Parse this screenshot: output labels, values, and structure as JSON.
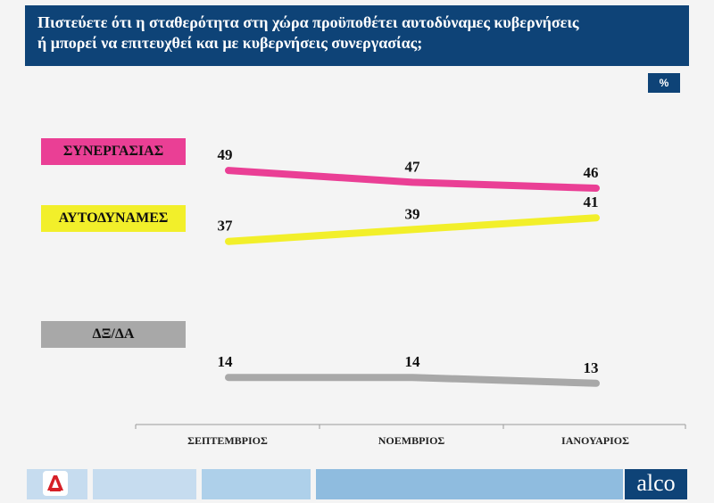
{
  "header": {
    "line1": "Πιστεύετε ότι η σταθερότητα στη χώρα προϋποθέτει αυτοδύναμες κυβερνήσεις",
    "line2": "ή μπορεί να επιτευχθεί και με κυβερνήσεις συνεργασίας;"
  },
  "unit_label": "%",
  "colors": {
    "header_bg": "#0e4377",
    "synergasias": "#ea3f95",
    "aftodynames": "#f2ef2a",
    "dk_na": "#a8a8a8",
    "footer_light": "#c6dcef",
    "footer_mid": "#8fbcdf"
  },
  "chart_data": {
    "type": "line",
    "categories": [
      "ΣΕΠΤΕΜΒΡΙΟΣ",
      "ΝΟΕΜΒΡΙΟΣ",
      "ΙΑΝΟΥΑΡΙΟΣ"
    ],
    "series": [
      {
        "name": "ΣΥΝΕΡΓΑΣΙΑΣ",
        "values": [
          49,
          47,
          46
        ],
        "color": "#ea3f95"
      },
      {
        "name": "ΑΥΤΟΔΥΝΑΜΕΣ",
        "values": [
          37,
          39,
          41
        ],
        "color": "#f2ef2a"
      },
      {
        "name": "ΔΞ/ΔΑ",
        "values": [
          14,
          14,
          13
        ],
        "color": "#a8a8a8"
      }
    ],
    "unit": "%",
    "legend": "left",
    "grid": false
  },
  "footer": {
    "brand_right": "alco",
    "icon_left": "channel-logo-icon"
  }
}
